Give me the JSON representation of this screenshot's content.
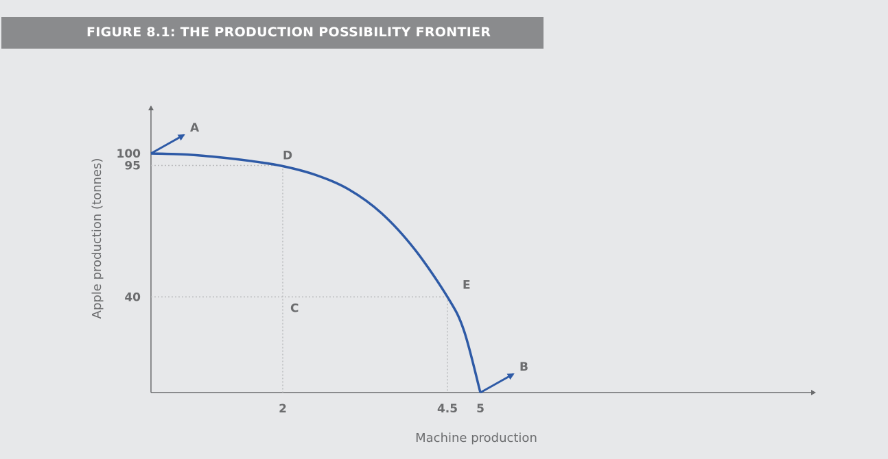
{
  "figure_title": "FIGURE 8.1: THE PRODUCTION POSSIBILITY FRONTIER",
  "chart_data": {
    "type": "line",
    "title": "FIGURE 8.1: THE PRODUCTION POSSIBILITY FRONTIER",
    "xlabel": "Machine production",
    "ylabel": "Apple production (tonnes)",
    "xlim": [
      0,
      5.7
    ],
    "ylim": [
      0,
      118
    ],
    "x_ticks": [
      {
        "value": 2,
        "label": "2"
      },
      {
        "value": 4.5,
        "label": "4.5"
      },
      {
        "value": 5,
        "label": "5"
      }
    ],
    "y_ticks": [
      {
        "value": 100,
        "label": "100"
      },
      {
        "value": 95,
        "label": "95"
      },
      {
        "value": 40,
        "label": "40"
      }
    ],
    "series": [
      {
        "x": [
          0,
          0.5,
          1,
          1.5,
          2,
          2.5,
          3,
          3.5,
          4,
          4.5,
          4.75,
          5
        ],
        "y": [
          100,
          99.6,
          98.5,
          96.9,
          94.7,
          91.0,
          85.0,
          75.0,
          60.0,
          40.0,
          26.0,
          0
        ]
      }
    ],
    "points": [
      {
        "label": "D",
        "x": 2,
        "y": 95
      },
      {
        "label": "E",
        "x": 4.5,
        "y": 40
      },
      {
        "label": "C",
        "x": 2,
        "y": 40
      }
    ],
    "arrows": [
      {
        "label": "A",
        "from": [
          0,
          100
        ]
      },
      {
        "label": "B",
        "from": [
          5,
          0
        ]
      }
    ],
    "guides": [
      {
        "from": [
          0,
          95
        ],
        "to": [
          2,
          95
        ]
      },
      {
        "from": [
          2,
          95
        ],
        "to": [
          2,
          0
        ]
      },
      {
        "from": [
          0,
          40
        ],
        "to": [
          4.5,
          40
        ]
      },
      {
        "from": [
          4.5,
          40
        ],
        "to": [
          4.5,
          0
        ]
      }
    ],
    "colors": {
      "curve": "#2e5aa6",
      "text": "#6b6c6e",
      "axis": "#6b6c6e",
      "guide": "#b9babc",
      "title_bg": "#8a8b8d"
    }
  }
}
